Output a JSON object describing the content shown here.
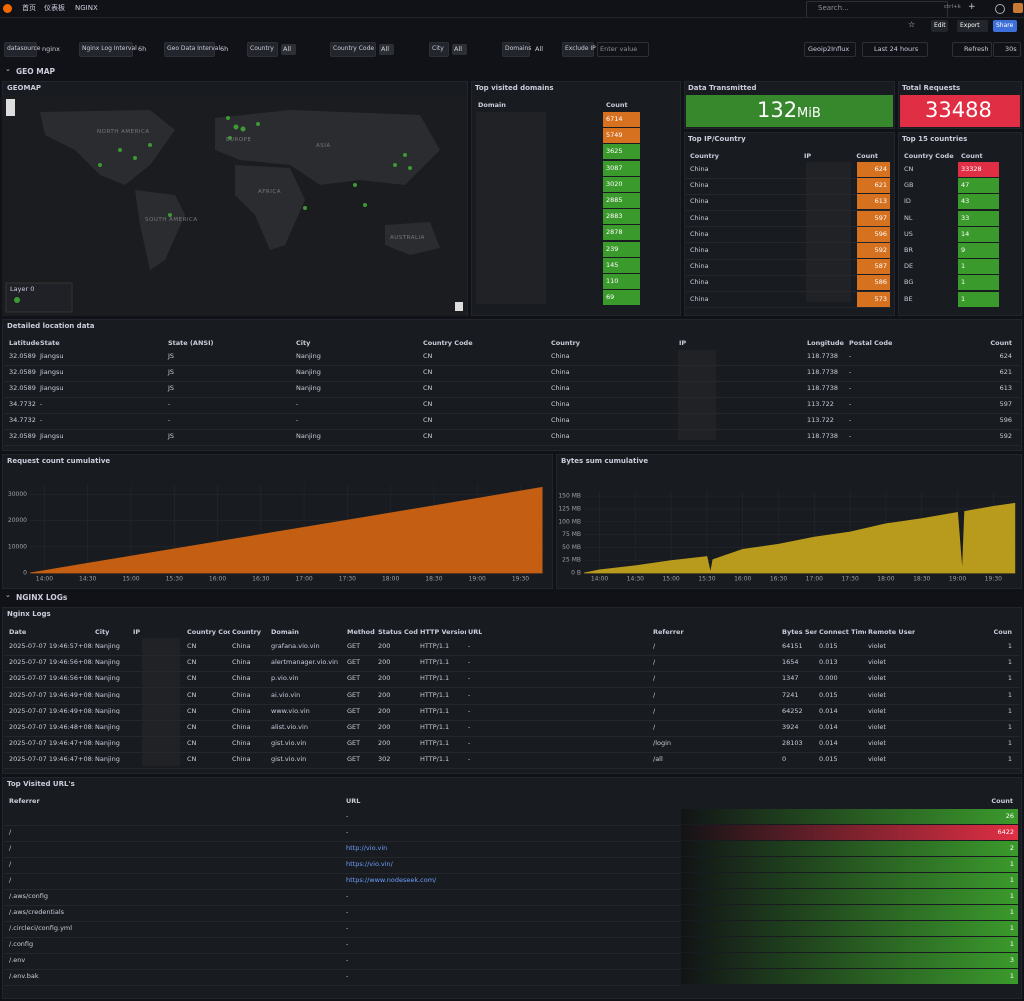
{
  "topbar": {
    "breadcrumbs": [
      "首页",
      "仪表板",
      "NGINX"
    ],
    "search": "Search...",
    "shortcut": "ctrl+k",
    "buttons": [
      "Edit",
      "Export",
      "Share"
    ]
  },
  "variables": [
    {
      "label": "datasource",
      "value": "nginx"
    },
    {
      "label": "Nginx Log Interval",
      "value": "6h"
    },
    {
      "label": "Geo Data Interval",
      "value": "6h"
    },
    {
      "label": "Country",
      "value": "All"
    },
    {
      "label": "Country Code",
      "value": "All"
    },
    {
      "label": "City",
      "value": "All"
    },
    {
      "label": "Domains",
      "value": "All"
    },
    {
      "label": "Exclude IP",
      "placeholder": "Enter value"
    }
  ],
  "controls": {
    "link": "Geoip2Influx",
    "time_range": "Last 24 hours",
    "refresh": "Refresh",
    "interval": "30s"
  },
  "rows": [
    "GEO MAP",
    "NGINX LOGs"
  ],
  "geomap": {
    "title": "GEOMAP",
    "regions": [
      "NORTH AMERICA",
      "EUROPE",
      "ASIA",
      "AFRICA",
      "SOUTH AMERICA",
      "AUSTRALIA"
    ],
    "layer": "Layer 0"
  },
  "top_domains": {
    "title": "Top visited domains",
    "columns": [
      "Domain",
      "Count"
    ],
    "counts": [
      6714,
      5749,
      3625,
      3087,
      3020,
      2885,
      2883,
      2878,
      239,
      145,
      110,
      69
    ],
    "colors": [
      "#d6711f",
      "#d6711f",
      "#3b9a2c",
      "#3b9a2c",
      "#3b9a2c",
      "#3b9a2c",
      "#3b9a2c",
      "#3b9a2c",
      "#3b9a2c",
      "#3b9a2c",
      "#3b9a2c",
      "#3b9a2c"
    ]
  },
  "data_transmitted": {
    "title": "Data Transmitted",
    "value": 132,
    "unit": "MiB",
    "color": "#37872d"
  },
  "total_requests": {
    "title": "Total Requests",
    "value": 33488,
    "color": "#e02f44"
  },
  "top_ip": {
    "title": "Top IP/Country",
    "columns": [
      "Country",
      "IP",
      "Count"
    ],
    "countries": [
      "China",
      "China",
      "China",
      "China",
      "China",
      "China",
      "China",
      "China",
      "China"
    ],
    "counts": [
      624,
      621,
      613,
      597,
      596,
      592,
      587,
      586,
      573
    ],
    "color": "#d6711f"
  },
  "top_countries": {
    "title": "Top 15 countries",
    "columns": [
      "Country Code",
      "Count"
    ],
    "codes": [
      "CN",
      "GB",
      "ID",
      "NL",
      "US",
      "BR",
      "DE",
      "BG",
      "BE"
    ],
    "counts": [
      33328,
      47,
      43,
      33,
      14,
      9,
      1,
      1,
      1
    ],
    "colors": [
      "#e02f44",
      "#3b9a2c",
      "#3b9a2c",
      "#3b9a2c",
      "#3b9a2c",
      "#3b9a2c",
      "#3b9a2c",
      "#3b9a2c",
      "#3b9a2c"
    ]
  },
  "location": {
    "title": "Detailed location data",
    "columns": [
      "Latitude",
      "State",
      "State (ANSI)",
      "City",
      "Country Code",
      "Country",
      "IP",
      "Longitude",
      "Postal Code",
      "Count"
    ],
    "rows": [
      [
        "32.0589",
        "Jiangsu",
        "JS",
        "Nanjing",
        "CN",
        "China",
        "118.7738",
        "-",
        624
      ],
      [
        "32.0589",
        "Jiangsu",
        "JS",
        "Nanjing",
        "CN",
        "China",
        "118.7738",
        "-",
        621
      ],
      [
        "32.0589",
        "Jiangsu",
        "JS",
        "Nanjing",
        "CN",
        "China",
        "118.7738",
        "-",
        613
      ],
      [
        "34.7732",
        "-",
        "-",
        "-",
        "CN",
        "China",
        "113.722",
        "-",
        597
      ],
      [
        "34.7732",
        "-",
        "-",
        "-",
        "CN",
        "China",
        "113.722",
        "-",
        596
      ],
      [
        "32.0589",
        "Jiangsu",
        "JS",
        "Nanjing",
        "CN",
        "China",
        "118.7738",
        "-",
        592
      ]
    ]
  },
  "chart_data": [
    {
      "type": "area",
      "title": "Request count cumulative",
      "x": [
        "13:50",
        "14:30",
        "15:30",
        "16:30",
        "17:30",
        "18:30",
        "19:30",
        "19:45"
      ],
      "values": [
        0,
        3700,
        9200,
        14700,
        20200,
        25700,
        31300,
        32700
      ],
      "color": "#c45e12",
      "xlim": [
        "13:50",
        "19:47"
      ],
      "ylim": [
        0,
        34000
      ],
      "yticks": [
        0,
        10000,
        20000,
        30000
      ],
      "xticks": [
        "14:00",
        "14:30",
        "15:00",
        "15:30",
        "16:00",
        "16:30",
        "17:00",
        "17:30",
        "18:00",
        "18:30",
        "19:00",
        "19:30"
      ]
    },
    {
      "type": "area",
      "title": "Bytes sum cumulative",
      "x": [
        "13:47",
        "14:00",
        "14:30",
        "15:00",
        "15:30",
        "15:33",
        "15:35",
        "16:00",
        "16:30",
        "17:00",
        "17:30",
        "18:00",
        "18:30",
        "19:00",
        "19:04",
        "19:06",
        "19:30",
        "19:48"
      ],
      "values": [
        0,
        6,
        14,
        24,
        32,
        0,
        26,
        46,
        56,
        70,
        80,
        96,
        106,
        118,
        0,
        120,
        130,
        136
      ],
      "color": "#b89a1c",
      "xlim": [
        "13:47",
        "19:49"
      ],
      "ylim": [
        0,
        160
      ],
      "yticks": [
        {
          "value": 0,
          "label": "0 B"
        },
        {
          "value": 25,
          "label": "25 MB"
        },
        {
          "value": 50,
          "label": "50 MB"
        },
        {
          "value": 75,
          "label": "75 MB"
        },
        {
          "value": 100,
          "label": "100 MB"
        },
        {
          "value": 125,
          "label": "125 MB"
        },
        {
          "value": 150,
          "label": "150 MB"
        }
      ],
      "xticks": [
        "14:00",
        "14:30",
        "15:00",
        "15:30",
        "16:00",
        "16:30",
        "17:00",
        "17:30",
        "18:00",
        "18:30",
        "19:00",
        "19:30"
      ]
    }
  ],
  "logs": {
    "title": "Nginx Logs",
    "columns": [
      "Date",
      "City",
      "IP",
      "Country Cod",
      "Country",
      "Domain",
      "Method",
      "Status Code",
      "HTTP Version",
      "URL",
      "Referrer",
      "Bytes Sen",
      "Connect Time",
      "Remote User",
      "Coun"
    ],
    "rows": [
      [
        "2025-07-07 19:46:57+08:0",
        "Nanjing",
        "CN",
        "China",
        "grafana.vio.vin",
        "GET",
        "200",
        "HTTP/1.1",
        "-",
        "/",
        "64151",
        "0.015",
        "violet",
        "1"
      ],
      [
        "2025-07-07 19:46:56+08:0",
        "Nanjing",
        "CN",
        "China",
        "alertmanager.vio.vin",
        "GET",
        "200",
        "HTTP/1.1",
        "-",
        "/",
        "1654",
        "0.013",
        "violet",
        "1"
      ],
      [
        "2025-07-07 19:46:56+08:0",
        "Nanjing",
        "CN",
        "China",
        "p.vio.vin",
        "GET",
        "200",
        "HTTP/1.1",
        "-",
        "/",
        "1347",
        "0.000",
        "violet",
        "1"
      ],
      [
        "2025-07-07 19:46:49+08:0",
        "Nanjing",
        "CN",
        "China",
        "ai.vio.vin",
        "GET",
        "200",
        "HTTP/1.1",
        "-",
        "/",
        "7241",
        "0.015",
        "violet",
        "1"
      ],
      [
        "2025-07-07 19:46:49+08:0",
        "Nanjing",
        "CN",
        "China",
        "www.vio.vin",
        "GET",
        "200",
        "HTTP/1.1",
        "-",
        "/",
        "64252",
        "0.014",
        "violet",
        "1"
      ],
      [
        "2025-07-07 19:46:48+08:0",
        "Nanjing",
        "CN",
        "China",
        "alist.vio.vin",
        "GET",
        "200",
        "HTTP/1.1",
        "-",
        "/",
        "3924",
        "0.014",
        "violet",
        "1"
      ],
      [
        "2025-07-07 19:46:47+08:0",
        "Nanjing",
        "CN",
        "China",
        "gist.vio.vin",
        "GET",
        "200",
        "HTTP/1.1",
        "-",
        "/login",
        "28103",
        "0.014",
        "violet",
        "1"
      ],
      [
        "2025-07-07 19:46:47+08:0",
        "Nanjing",
        "CN",
        "China",
        "gist.vio.vin",
        "GET",
        "302",
        "HTTP/1.1",
        "-",
        "/all",
        "0",
        "0.015",
        "violet",
        "1"
      ]
    ]
  },
  "urls": {
    "title": "Top Visited URL's",
    "columns": [
      "Referrer",
      "URL",
      "Count"
    ],
    "rows": [
      {
        "url": "-",
        "count": 26,
        "color": "#3b9a2c"
      },
      {
        "referrer": "/",
        "url": "-",
        "count": 6422,
        "color": "#e02f44"
      },
      {
        "referrer": "/",
        "url": "http://vio.vin",
        "count": 2,
        "color": "#3b9a2c"
      },
      {
        "referrer": "/",
        "url": "https://vio.vin/",
        "count": 1,
        "color": "#3b9a2c"
      },
      {
        "referrer": "/",
        "url": "https://www.nodeseek.com/",
        "count": 1,
        "color": "#3b9a2c"
      },
      {
        "referrer": "/.aws/config",
        "url": "-",
        "count": 1,
        "color": "#3b9a2c"
      },
      {
        "referrer": "/.aws/credentials",
        "url": "-",
        "count": 1,
        "color": "#3b9a2c"
      },
      {
        "referrer": "/.circleci/config.yml",
        "url": "-",
        "count": 1,
        "color": "#3b9a2c"
      },
      {
        "referrer": "/.config",
        "url": "-",
        "count": 1,
        "color": "#3b9a2c"
      },
      {
        "referrer": "/.env",
        "url": "-",
        "count": 3,
        "color": "#3b9a2c"
      },
      {
        "referrer": "/.env.bak",
        "url": "-",
        "count": 1,
        "color": "#3b9a2c"
      }
    ]
  }
}
